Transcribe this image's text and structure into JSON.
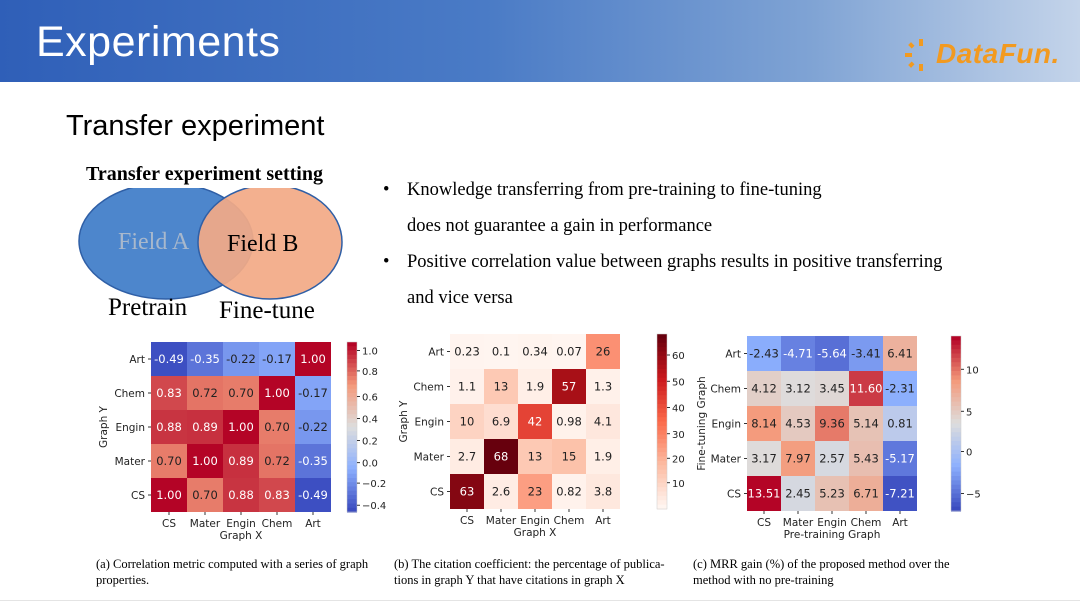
{
  "header": {
    "title": "Experiments",
    "logo_text": "DataFun."
  },
  "section_title": "Transfer experiment",
  "venn": {
    "title": "Transfer experiment setting",
    "field_a": "Field A",
    "field_b": "Field B",
    "pretrain_label": "Pretrain",
    "finetune_label": "Fine-tune"
  },
  "bullets": [
    {
      "line1": "Knowledge transferring from pre-training to fine-tuning",
      "line2": "does not guarantee a gain in performance"
    },
    {
      "line1": "Positive correlation value between graphs results in positive transferring",
      "line2": "and vice versa"
    }
  ],
  "captions": {
    "a": [
      "(a)  Correlation metric computed with a series of graph",
      "properties."
    ],
    "b": [
      "(b)  The citation coefficient: the percentage of publica-",
      "tions in graph Y that have citations in graph X"
    ],
    "c": [
      "(c)  MRR gain (%) of the proposed method over the",
      "method with no pre-training"
    ]
  },
  "chart_data": [
    {
      "type": "heatmap",
      "title": "",
      "xlabel": "Graph X",
      "ylabel": "Graph Y",
      "x": [
        "CS",
        "Mater",
        "Engin",
        "Chem",
        "Art"
      ],
      "y": [
        "Art",
        "Chem",
        "Engin",
        "Mater",
        "CS"
      ],
      "values": [
        [
          "-0.49",
          "-0.35",
          "-0.22",
          "-0.17",
          "1.00"
        ],
        [
          "0.83",
          "0.72",
          "0.70",
          "1.00",
          "-0.17"
        ],
        [
          "0.88",
          "0.89",
          "1.00",
          "0.70",
          "-0.22"
        ],
        [
          "0.70",
          "1.00",
          "0.89",
          "0.72",
          "-0.35"
        ],
        [
          "1.00",
          "0.70",
          "0.88",
          "0.83",
          "-0.49"
        ]
      ],
      "colormap": "coolwarm",
      "vmin": -0.5,
      "vmax": 1.0,
      "colorbar_ticks": [
        "1.0",
        "0.8",
        "0.6",
        "0.4",
        "0.2",
        "0.0",
        "−0.2",
        "−0.4"
      ]
    },
    {
      "type": "heatmap",
      "title": "",
      "xlabel": "Graph X",
      "ylabel": "Graph Y",
      "x": [
        "CS",
        "Mater",
        "Engin",
        "Chem",
        "Art"
      ],
      "y": [
        "Art",
        "Chem",
        "Engin",
        "Mater",
        "CS"
      ],
      "values": [
        [
          "0.23",
          "0.1",
          "0.34",
          "0.07",
          "26"
        ],
        [
          "1.1",
          "13",
          "1.9",
          "57",
          "1.3"
        ],
        [
          "10",
          "6.9",
          "42",
          "0.98",
          "4.1"
        ],
        [
          "2.7",
          "68",
          "13",
          "15",
          "1.9"
        ],
        [
          "63",
          "2.6",
          "23",
          "0.82",
          "3.8"
        ]
      ],
      "colormap": "reds",
      "vmin": 0,
      "vmax": 68,
      "colorbar_ticks": [
        "60",
        "50",
        "40",
        "30",
        "20",
        "10"
      ]
    },
    {
      "type": "heatmap",
      "title": "",
      "xlabel": "Pre-training Graph",
      "ylabel": "Fine-tuning Graph",
      "x": [
        "CS",
        "Mater",
        "Engin",
        "Chem",
        "Art"
      ],
      "y": [
        "Art",
        "Chem",
        "Engin",
        "Mater",
        "CS"
      ],
      "values": [
        [
          "-2.43",
          "-4.71",
          "-5.64",
          "-3.41",
          "6.41"
        ],
        [
          "4.12",
          "3.12",
          "3.45",
          "11.60",
          "-2.31"
        ],
        [
          "8.14",
          "4.53",
          "9.36",
          "5.14",
          "0.81"
        ],
        [
          "3.17",
          "7.97",
          "2.57",
          "5.43",
          "-5.17"
        ],
        [
          "13.51",
          "2.45",
          "5.23",
          "6.71",
          "-7.21"
        ]
      ],
      "colormap": "coolwarm",
      "vmin": -7.5,
      "vmax": 13.5,
      "colorbar_ticks": [
        "10",
        "5",
        "0",
        "−5"
      ]
    }
  ]
}
